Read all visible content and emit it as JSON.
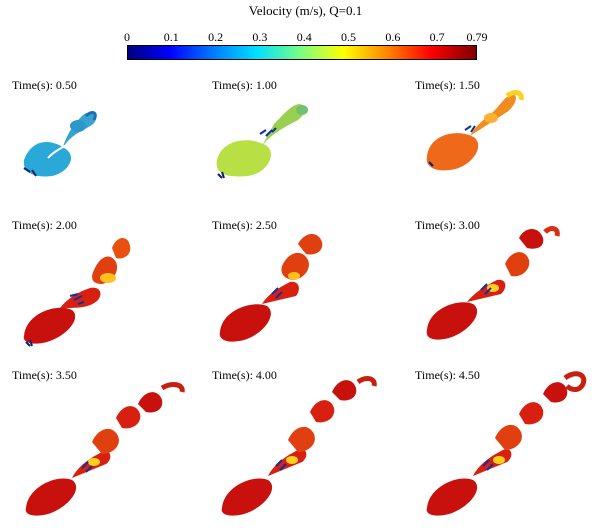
{
  "colorbar": {
    "title": "Velocity (m/s), Q=0.1",
    "ticks": [
      "0",
      "0.1",
      "0.2",
      "0.3",
      "0.4",
      "0.5",
      "0.6",
      "0.7",
      "0.79"
    ],
    "min": 0,
    "max": 0.79,
    "gradient_colors": [
      "#00007f",
      "#0000ff",
      "#0080ff",
      "#00e0ff",
      "#7fff7f",
      "#ffff00",
      "#ff8000",
      "#ff0000",
      "#7f0000"
    ]
  },
  "panels": [
    {
      "label": "Time(s): 0.50",
      "body_color": "#2aa8d8",
      "tail_color": "#1e90c8"
    },
    {
      "label": "Time(s): 1.00",
      "body_color": "#b8e044",
      "tail_color": "#6fd080"
    },
    {
      "label": "Time(s): 1.50",
      "body_color": "#ee6a1a",
      "tail_color": "#ffb020"
    },
    {
      "label": "Time(s): 2.00",
      "body_color": "#c8100c",
      "tail_color": "#e85010"
    },
    {
      "label": "Time(s): 2.50",
      "body_color": "#c8100c",
      "tail_color": "#e85010"
    },
    {
      "label": "Time(s): 3.00",
      "body_color": "#c8100c",
      "tail_color": "#e85010"
    },
    {
      "label": "Time(s): 3.50",
      "body_color": "#c8100c",
      "tail_color": "#e85010"
    },
    {
      "label": "Time(s): 4.00",
      "body_color": "#c8100c",
      "tail_color": "#e85010"
    },
    {
      "label": "Time(s): 4.50",
      "body_color": "#c8100c",
      "tail_color": "#e85010"
    }
  ]
}
